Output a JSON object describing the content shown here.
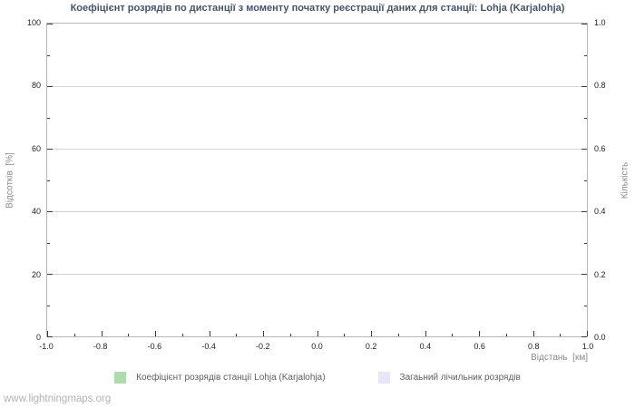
{
  "watermark": "www.lightningmaps.org",
  "chart_data": {
    "type": "line",
    "title": "Коефіцієнт розрядів по дистанції з моменту початку реєстрації даних для станції: Lohja (Karjalohja)",
    "xlabel": "Відстань  [км]",
    "ylabel_left": "Відсотків  [%]",
    "ylabel_right": "Кількість",
    "xlim": [
      -1.0,
      1.0
    ],
    "ylim_left": [
      0,
      100
    ],
    "ylim_right": [
      0.0,
      1.0
    ],
    "x_ticks": [
      "-1.0",
      "-0.8",
      "-0.6",
      "-0.4",
      "-0.2",
      "0.0",
      "0.2",
      "0.4",
      "0.6",
      "0.8",
      "1.0"
    ],
    "y_ticks_left": [
      "0",
      "20",
      "40",
      "60",
      "80",
      "100"
    ],
    "y_ticks_right": [
      "0.0",
      "0.2",
      "0.4",
      "0.6",
      "0.8",
      "1.0"
    ],
    "grid": "horizontal-only",
    "legend_position": "bottom",
    "frame_color": "#b8b8b8",
    "gridline_color": "#d4d4d4",
    "title_color": "#44546a",
    "series": [
      {
        "name": "Коефіцієнт розрядів станції Lohja (Karjalohja)",
        "color": "#aedaae",
        "axis": "left",
        "values": []
      },
      {
        "name": "Загаьний лічильник розрядів",
        "color": "#e6e6f7",
        "axis": "right",
        "values": []
      }
    ]
  }
}
